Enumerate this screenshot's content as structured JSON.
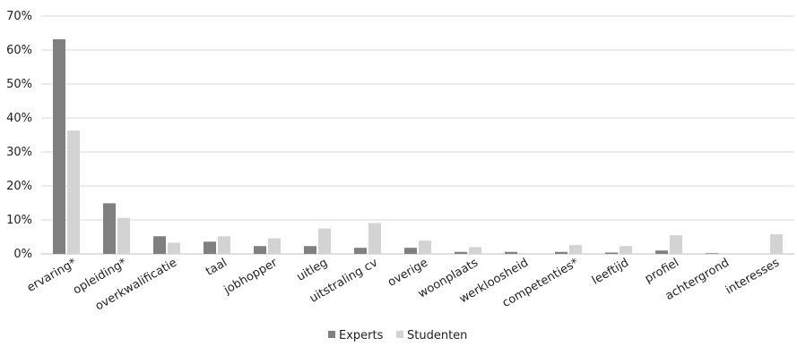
{
  "chart_data": {
    "type": "bar",
    "title": "",
    "xlabel": "",
    "ylabel": "",
    "ylim": [
      0,
      70
    ],
    "yticks": [
      0,
      10,
      20,
      30,
      40,
      50,
      60,
      70
    ],
    "ytick_suffix": "%",
    "grid": "horizontal",
    "legend_position": "bottom",
    "categories": [
      "ervaring*",
      "opleiding*",
      "overkwalificatie",
      "taal",
      "jobhopper",
      "uitleg",
      "uitstraling cv",
      "overige",
      "woonplaats",
      "werkloosheid",
      "competenties*",
      "leeftijd",
      "profiel",
      "achtergrond",
      "interesses"
    ],
    "series": [
      {
        "name": "Experts",
        "color": "#808080",
        "values": [
          63.2,
          14.9,
          5.2,
          3.6,
          2.3,
          2.3,
          1.8,
          1.8,
          0.6,
          0.6,
          0.6,
          0.4,
          1.0,
          0.2,
          0.0
        ]
      },
      {
        "name": "Studenten",
        "color": "#d3d3d3",
        "values": [
          36.3,
          10.6,
          3.3,
          5.2,
          4.6,
          7.5,
          9.1,
          3.9,
          2.0,
          0.0,
          2.6,
          2.3,
          5.5,
          0.0,
          5.8
        ]
      }
    ]
  }
}
